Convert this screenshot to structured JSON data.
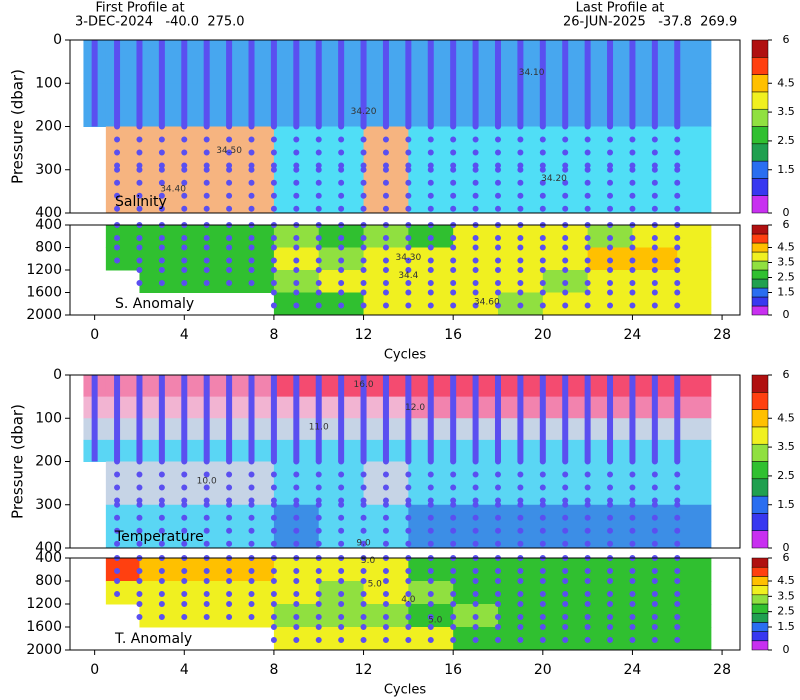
{
  "header": {
    "first_label": "First Profile at",
    "first_info": "3-DEC-2024   -40.0  275.0",
    "last_label": "Last Profile at",
    "last_info": "26-JUN-2025   -37.8  269.9"
  },
  "chart_data": [
    {
      "type": "heatmap",
      "title": "Salinity",
      "ylabel": "Pressure (dbar)",
      "xlim": [
        -1.1,
        28.8
      ],
      "ylim": [
        0,
        400
      ],
      "y_inverted": true,
      "yticks": [
        0,
        100,
        200,
        300,
        400
      ],
      "xbins": [
        -0.5,
        0.5,
        2,
        4,
        6,
        8,
        10,
        12,
        14,
        16,
        18,
        20,
        22,
        24,
        26,
        27.5
      ],
      "ybins": [
        0,
        100,
        200,
        300,
        400
      ],
      "values": [
        [
          34.15,
          34.15,
          34.15,
          34.15,
          34.15,
          34.15,
          34.15,
          34.15,
          34.15,
          34.15,
          34.15,
          34.15,
          34.15,
          34.15,
          34.15
        ],
        [
          34.2,
          34.2,
          34.2,
          34.2,
          34.2,
          34.2,
          34.2,
          34.2,
          34.2,
          34.2,
          34.2,
          34.2,
          34.2,
          34.2,
          34.2
        ],
        [
          null,
          34.6,
          34.6,
          34.6,
          34.6,
          34.35,
          34.35,
          34.6,
          34.3,
          34.3,
          34.3,
          34.3,
          34.3,
          34.3,
          34.3
        ],
        [
          null,
          34.6,
          34.6,
          34.6,
          34.6,
          34.35,
          34.35,
          34.6,
          34.3,
          34.3,
          34.3,
          34.3,
          34.3,
          34.3,
          34.3
        ]
      ],
      "levels": [
        34.25,
        34.45
      ],
      "colors": [
        "#47a7ef",
        "#50def6",
        "#f6b480"
      ],
      "profiles": [
        0,
        1,
        2,
        3,
        4,
        5,
        6,
        7,
        8,
        9,
        10,
        11,
        12,
        13,
        14,
        15,
        16,
        17,
        18,
        19,
        20,
        21,
        22,
        23,
        24,
        25,
        26
      ],
      "profile_solid_above": 200,
      "annotations": [
        {
          "text": "34.10",
          "x": 19.5,
          "y": 75
        },
        {
          "text": "34.20",
          "x": 12,
          "y": 165
        },
        {
          "text": "34.50",
          "x": 6,
          "y": 255
        },
        {
          "text": "34.40",
          "x": 3.5,
          "y": 345
        },
        {
          "text": "34.20",
          "x": 20.5,
          "y": 320
        }
      ],
      "colorbar": {
        "ylim": [
          0,
          6
        ],
        "yticks": [
          0,
          1.5,
          2.5,
          3.5,
          4.5,
          6
        ],
        "colors": [
          "#c830f0",
          "#3838f0",
          "#2a6ef0",
          "#20a050",
          "#30c030",
          "#90e040",
          "#f0f020",
          "#ffc000",
          "#ff4010",
          "#b01010"
        ]
      }
    },
    {
      "type": "heatmap",
      "title": "S. Anomaly",
      "xlim": [
        -1.1,
        28.8
      ],
      "xticks": [
        0,
        4,
        8,
        12,
        16,
        20,
        24,
        28
      ],
      "xlabel": "Cycles",
      "ylim": [
        400,
        2000
      ],
      "y_inverted": true,
      "yticks": [
        400,
        800,
        1200,
        1600,
        2000
      ],
      "xbins": [
        -0.5,
        0.5,
        2,
        4,
        6,
        8,
        10,
        12,
        14,
        16,
        18,
        20,
        22,
        24,
        26,
        27.5
      ],
      "ybins": [
        400,
        800,
        1200,
        1600,
        2000
      ],
      "values": [
        [
          null,
          2.8,
          2.8,
          2.8,
          2.8,
          3.2,
          2.8,
          3.0,
          2.8,
          3.7,
          3.7,
          3.7,
          3.2,
          3.7,
          3.7
        ],
        [
          null,
          2.8,
          2.8,
          2.8,
          2.8,
          3.7,
          3.2,
          3.7,
          3.7,
          3.7,
          3.7,
          3.7,
          4.2,
          4.2,
          3.7
        ],
        [
          null,
          null,
          2.8,
          2.8,
          2.8,
          3.2,
          3.7,
          3.7,
          3.7,
          3.7,
          3.7,
          3.2,
          3.7,
          3.7,
          3.7
        ],
        [
          null,
          null,
          null,
          null,
          null,
          2.8,
          2.8,
          3.7,
          3.7,
          3.7,
          3.2,
          3.7,
          3.7,
          3.7,
          3.7
        ]
      ],
      "levels": [
        0.75,
        1.5,
        2,
        2.5,
        3,
        3.5,
        4,
        4.5,
        5
      ],
      "colors": [
        "#c830f0",
        "#3838f0",
        "#2a6ef0",
        "#20a050",
        "#30c030",
        "#90e040",
        "#f0f020",
        "#ffc000",
        "#ff4010",
        "#b01010"
      ],
      "profiles": [
        1,
        2,
        3,
        4,
        5,
        6,
        7,
        8,
        9,
        10,
        11,
        12,
        13,
        14,
        15,
        16,
        17,
        18,
        19,
        20,
        21,
        22,
        23,
        24,
        25,
        26
      ],
      "annotations": [
        {
          "text": "34.30",
          "x": 14,
          "y": 980
        },
        {
          "text": "34.4",
          "x": 14,
          "y": 1300
        },
        {
          "text": "34.60",
          "x": 17.5,
          "y": 1770
        }
      ],
      "colorbar": {
        "ylim": [
          0,
          6
        ],
        "yticks": [
          0,
          1.5,
          2.5,
          3.5,
          4.5,
          6
        ],
        "colors": [
          "#c830f0",
          "#3838f0",
          "#2a6ef0",
          "#20a050",
          "#30c030",
          "#90e040",
          "#f0f020",
          "#ffc000",
          "#ff4010",
          "#b01010"
        ]
      }
    },
    {
      "type": "heatmap",
      "title": "Temperature",
      "ylabel": "Pressure (dbar)",
      "xlim": [
        -1.1,
        28.8
      ],
      "ylim": [
        0,
        400
      ],
      "y_inverted": true,
      "yticks": [
        0,
        100,
        200,
        300,
        400
      ],
      "xbins": [
        -0.5,
        0.5,
        2,
        4,
        6,
        8,
        10,
        12,
        14,
        16,
        18,
        20,
        22,
        24,
        26,
        27.5
      ],
      "ybins": [
        0,
        50,
        100,
        150,
        200,
        300,
        400
      ],
      "values": [
        [
          13.5,
          13.5,
          13.5,
          13.5,
          13.5,
          14.5,
          14.5,
          14.5,
          14.5,
          14.5,
          14.5,
          14.5,
          14.5,
          14.5,
          14.5
        ],
        [
          12.5,
          12.5,
          12.5,
          12.5,
          12.5,
          12.5,
          12.5,
          12.5,
          13.5,
          13.5,
          13.5,
          13.5,
          13.5,
          13.5,
          13.5
        ],
        [
          11.5,
          11.5,
          11.5,
          11.5,
          11.5,
          11.5,
          11.5,
          11.5,
          11.5,
          11.5,
          11.5,
          11.5,
          11.5,
          11.5,
          11.5
        ],
        [
          10.5,
          10.5,
          10.5,
          10.5,
          10.5,
          10.5,
          10.5,
          10.5,
          10.5,
          10.5,
          10.5,
          10.5,
          10.5,
          10.5,
          10.5
        ],
        [
          null,
          11.5,
          11.5,
          11.5,
          11.5,
          10.5,
          10.5,
          11.5,
          10.5,
          10.5,
          10.5,
          10.5,
          10.5,
          10.5,
          10.5
        ],
        [
          null,
          10.5,
          10.5,
          10.5,
          10.5,
          9.5,
          10.5,
          10.5,
          9.5,
          9.5,
          9.5,
          9.5,
          9.5,
          9.5,
          9.5
        ]
      ],
      "levels": [
        10,
        11,
        12,
        13,
        14
      ],
      "colors": [
        "#3c8ee6",
        "#5ad6f4",
        "#c6d4e6",
        "#f2b4d2",
        "#f283ae",
        "#f44b70"
      ],
      "profiles": [
        0,
        1,
        2,
        3,
        4,
        5,
        6,
        7,
        8,
        9,
        10,
        11,
        12,
        13,
        14,
        15,
        16,
        17,
        18,
        19,
        20,
        21,
        22,
        23,
        24,
        25,
        26
      ],
      "profile_solid_above": 200,
      "annotations": [
        {
          "text": "16.0",
          "x": 12,
          "y": 22
        },
        {
          "text": "12.0",
          "x": 14.3,
          "y": 75
        },
        {
          "text": "11.0",
          "x": 10,
          "y": 120
        },
        {
          "text": "10.0",
          "x": 5,
          "y": 245
        },
        {
          "text": "9.0",
          "x": 12,
          "y": 388
        }
      ],
      "colorbar": {
        "ylim": [
          0,
          6
        ],
        "yticks": [
          0,
          1.5,
          2.5,
          3.5,
          4.5,
          6
        ],
        "colors": [
          "#c830f0",
          "#3838f0",
          "#2a6ef0",
          "#20a050",
          "#30c030",
          "#90e040",
          "#f0f020",
          "#ffc000",
          "#ff4010",
          "#b01010"
        ]
      }
    },
    {
      "type": "heatmap",
      "title": "T. Anomaly",
      "xlim": [
        -1.1,
        28.8
      ],
      "xticks": [
        0,
        4,
        8,
        12,
        16,
        20,
        24,
        28
      ],
      "xlabel": "Cycles",
      "ylim": [
        400,
        2000
      ],
      "y_inverted": true,
      "yticks": [
        400,
        800,
        1200,
        1600,
        2000
      ],
      "xbins": [
        -0.5,
        0.5,
        2,
        4,
        6,
        8,
        10,
        12,
        14,
        16,
        18,
        20,
        22,
        24,
        26,
        27.5
      ],
      "ybins": [
        400,
        800,
        1200,
        1600,
        2000
      ],
      "values": [
        [
          null,
          4.7,
          4.2,
          4.2,
          4.2,
          3.7,
          3.7,
          3.7,
          2.8,
          2.8,
          2.8,
          2.8,
          2.8,
          2.8,
          2.8
        ],
        [
          null,
          3.7,
          3.7,
          3.7,
          3.7,
          3.7,
          3.2,
          3.7,
          3.2,
          2.8,
          2.8,
          2.8,
          2.8,
          2.8,
          2.8
        ],
        [
          null,
          null,
          3.7,
          3.7,
          3.7,
          3.2,
          3.2,
          3.2,
          2.8,
          3.2,
          2.8,
          2.8,
          2.8,
          2.8,
          2.8
        ],
        [
          null,
          null,
          null,
          null,
          null,
          3.7,
          3.7,
          3.7,
          3.7,
          2.8,
          2.8,
          2.8,
          2.8,
          2.8,
          2.8
        ]
      ],
      "levels": [
        0.75,
        1.5,
        2,
        2.5,
        3,
        3.5,
        4,
        4.5,
        5
      ],
      "colors": [
        "#c830f0",
        "#3838f0",
        "#2a6ef0",
        "#20a050",
        "#30c030",
        "#90e040",
        "#f0f020",
        "#ffc000",
        "#ff4010",
        "#b01010"
      ],
      "profiles": [
        1,
        2,
        3,
        4,
        5,
        6,
        7,
        8,
        9,
        10,
        11,
        12,
        13,
        14,
        15,
        16,
        17,
        18,
        19,
        20,
        21,
        22,
        23,
        24,
        25,
        26
      ],
      "annotations": [
        {
          "text": "5.0",
          "x": 12.2,
          "y": 440
        },
        {
          "text": "5.0",
          "x": 12.5,
          "y": 850
        },
        {
          "text": "4.0",
          "x": 14,
          "y": 1120
        },
        {
          "text": "5.0",
          "x": 15.2,
          "y": 1480
        }
      ],
      "colorbar": {
        "ylim": [
          0,
          6
        ],
        "yticks": [
          0,
          1.5,
          2.5,
          3.5,
          4.5,
          6
        ],
        "colors": [
          "#c830f0",
          "#3838f0",
          "#2a6ef0",
          "#20a050",
          "#30c030",
          "#90e040",
          "#f0f020",
          "#ffc000",
          "#ff4010",
          "#b01010"
        ]
      }
    }
  ]
}
